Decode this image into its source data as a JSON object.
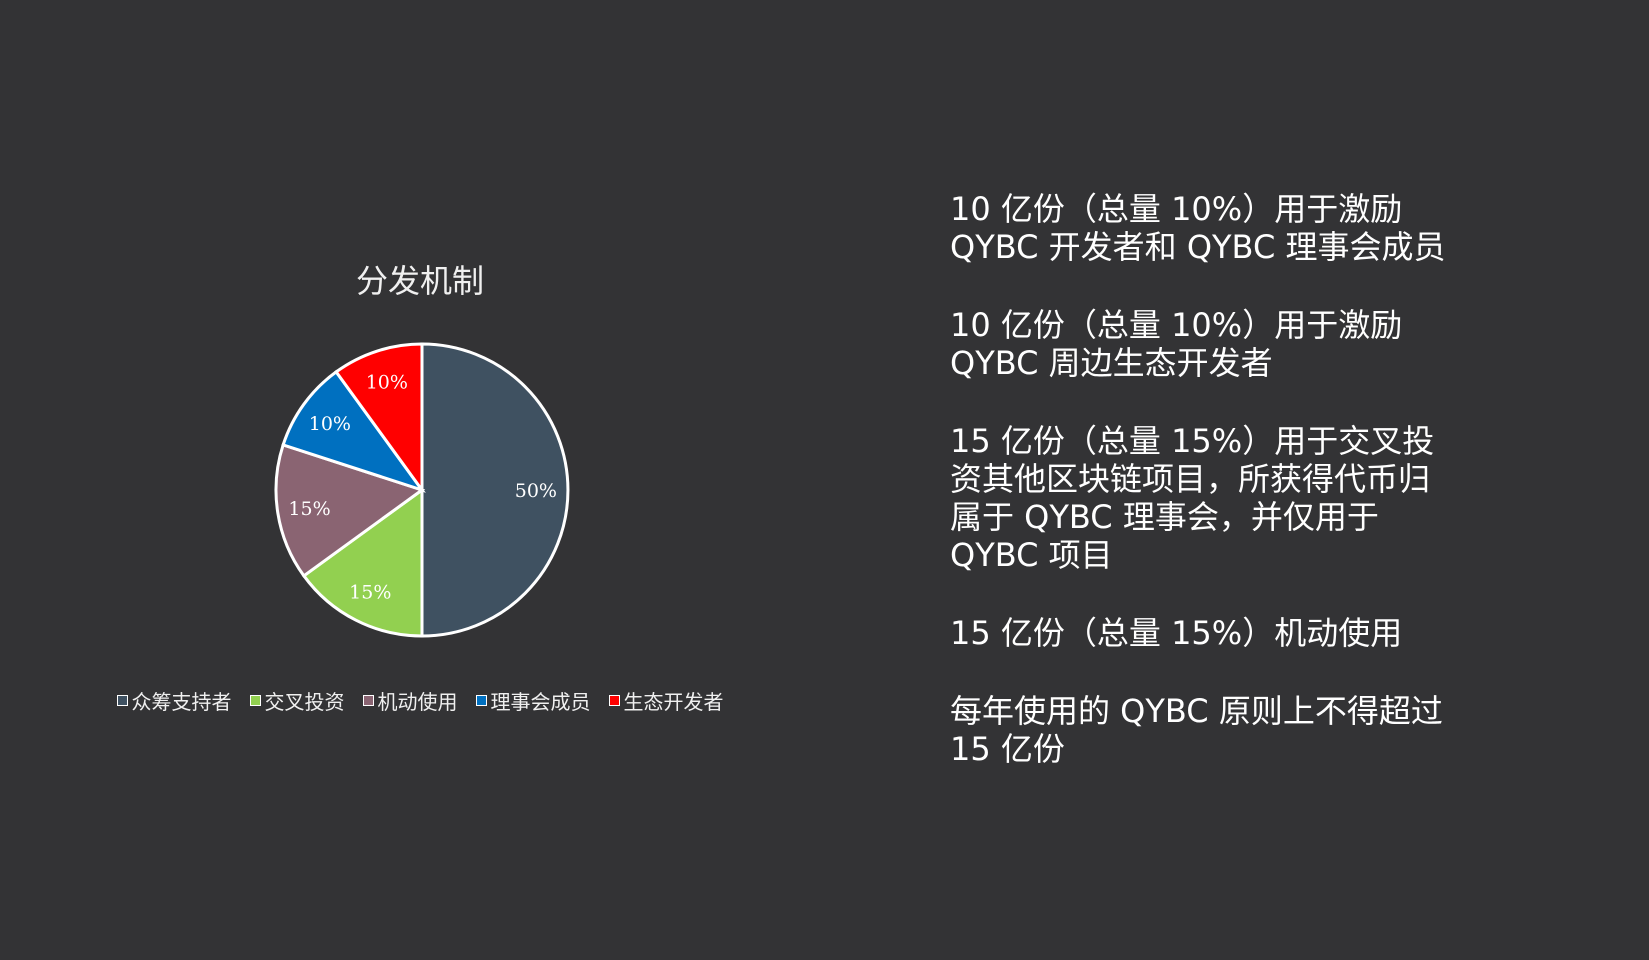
{
  "chart_data": {
    "type": "pie",
    "title": "分发机制",
    "categories": [
      "众筹支持者",
      "交叉投资",
      "机动使用",
      "理事会成员",
      "生态开发者"
    ],
    "values": [
      50,
      15,
      15,
      10,
      10
    ],
    "labels": [
      "50%",
      "15%",
      "15%",
      "10%",
      "10%"
    ],
    "colors": [
      "#3f5161",
      "#92d050",
      "#8a6472",
      "#0070c0",
      "#ff0000"
    ],
    "legend_position": "bottom"
  },
  "paragraphs": [
    "10 亿份（总量 10%）用于激励\nQYBC 开发者和 QYBC 理事会成员",
    "10 亿份（总量 10%）用于激励\nQYBC 周边生态开发者",
    "15 亿份（总量 15%）用于交叉投\n资其他区块链项目，所获得代币归\n属于 QYBC 理事会，并仅用于\nQYBC 项目",
    "15 亿份（总量 15%）机动使用",
    "每年使用的 QYBC 原则上不得超过\n15 亿份"
  ]
}
